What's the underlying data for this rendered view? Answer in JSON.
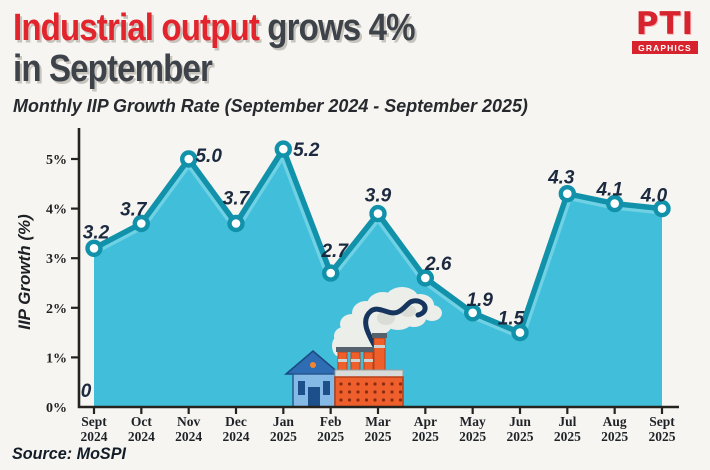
{
  "header": {
    "title_red": "Industrial output",
    "title_rest": " grows 4%",
    "title_line2": "in September",
    "subtitle": "Monthly IIP Growth Rate (September 2024 - September 2025)"
  },
  "logo": {
    "text": "PTI",
    "banner": "GRAPHICS"
  },
  "source": "Source: MoSPI",
  "chart_data": {
    "type": "area",
    "title": "Monthly IIP Growth Rate (September 2024 - September 2025)",
    "xlabel": "",
    "ylabel": "IIP Growth (%)",
    "ylim": [
      0,
      5.6
    ],
    "yticks": [
      "0%",
      "1%",
      "2%",
      "3%",
      "4%",
      "5%"
    ],
    "grid": false,
    "legend": false,
    "categories": [
      "Sept 2024",
      "Oct 2024",
      "Nov 2024",
      "Dec 2024",
      "Jan 2025",
      "Feb 2025",
      "Mar 2025",
      "Apr 2025",
      "May 2025",
      "Jun 2025",
      "Jul 2025",
      "Aug 2025",
      "Sept 2025"
    ],
    "values": [
      3.2,
      3.7,
      5.0,
      3.7,
      5.2,
      2.7,
      3.9,
      2.6,
      1.9,
      1.5,
      4.3,
      4.1,
      4.0
    ],
    "baseline_annotation": "0",
    "colors": {
      "fill": "#41bfda",
      "glow": "#8fdeed",
      "line": "#1192aa",
      "marker_fill": "#ffffff",
      "label": "#1c2a40",
      "axis": "#26221e",
      "smoke": "#eceee9",
      "smoke_shade": "#d9ddd5",
      "smoke_swirl": "#16355e"
    }
  }
}
